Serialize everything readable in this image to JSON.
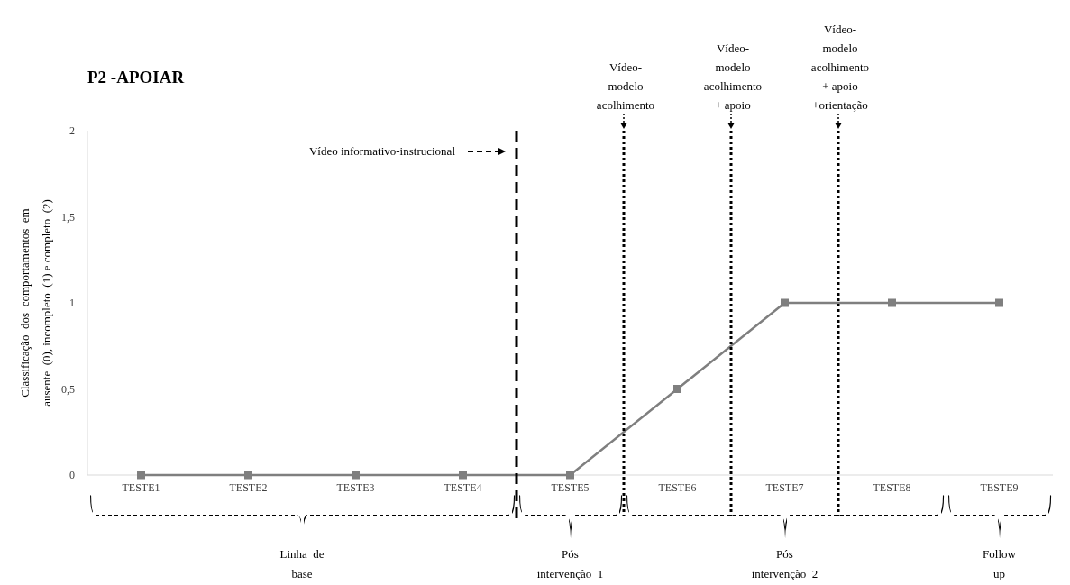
{
  "chart_data": {
    "type": "line",
    "title": "P2 -APOIAR",
    "ylabel": "Classificação  dos  comportamentos  em\nausente  (0), incompleto  (1) e completo  (2)",
    "categories": [
      "TESTE1",
      "TESTE2",
      "TESTE3",
      "TESTE4",
      "TESTE5",
      "TESTE6",
      "TESTE7",
      "TESTE8",
      "TESTE9"
    ],
    "series": [
      {
        "color": "#7f7f7f",
        "values": [
          0,
          0,
          0,
          0,
          0,
          0.5,
          1,
          1,
          1
        ]
      }
    ],
    "ylim": [
      0,
      2
    ],
    "yticks": [
      {
        "value": 0,
        "label": "0"
      },
      {
        "value": 0.5,
        "label": "0,5"
      },
      {
        "value": 1,
        "label": "1"
      },
      {
        "value": 1.5,
        "label": "1,5"
      },
      {
        "value": 2,
        "label": "2"
      }
    ],
    "marker": "square",
    "grid": false,
    "annotations": [
      "Vídeo informativo-instrucional",
      "Vídeo-\nmodelo\nacolhimento",
      "Vídeo-\nmodelo\nacolhimento\n+ apoio",
      "Vídeo-\nmodelo\nacolhimento\n+ apoio\n+orientação",
      "Linha  de\nbase",
      "Pós\nintervenção  1",
      "Pós\nintervenção  2",
      "Follow\nup"
    ]
  }
}
